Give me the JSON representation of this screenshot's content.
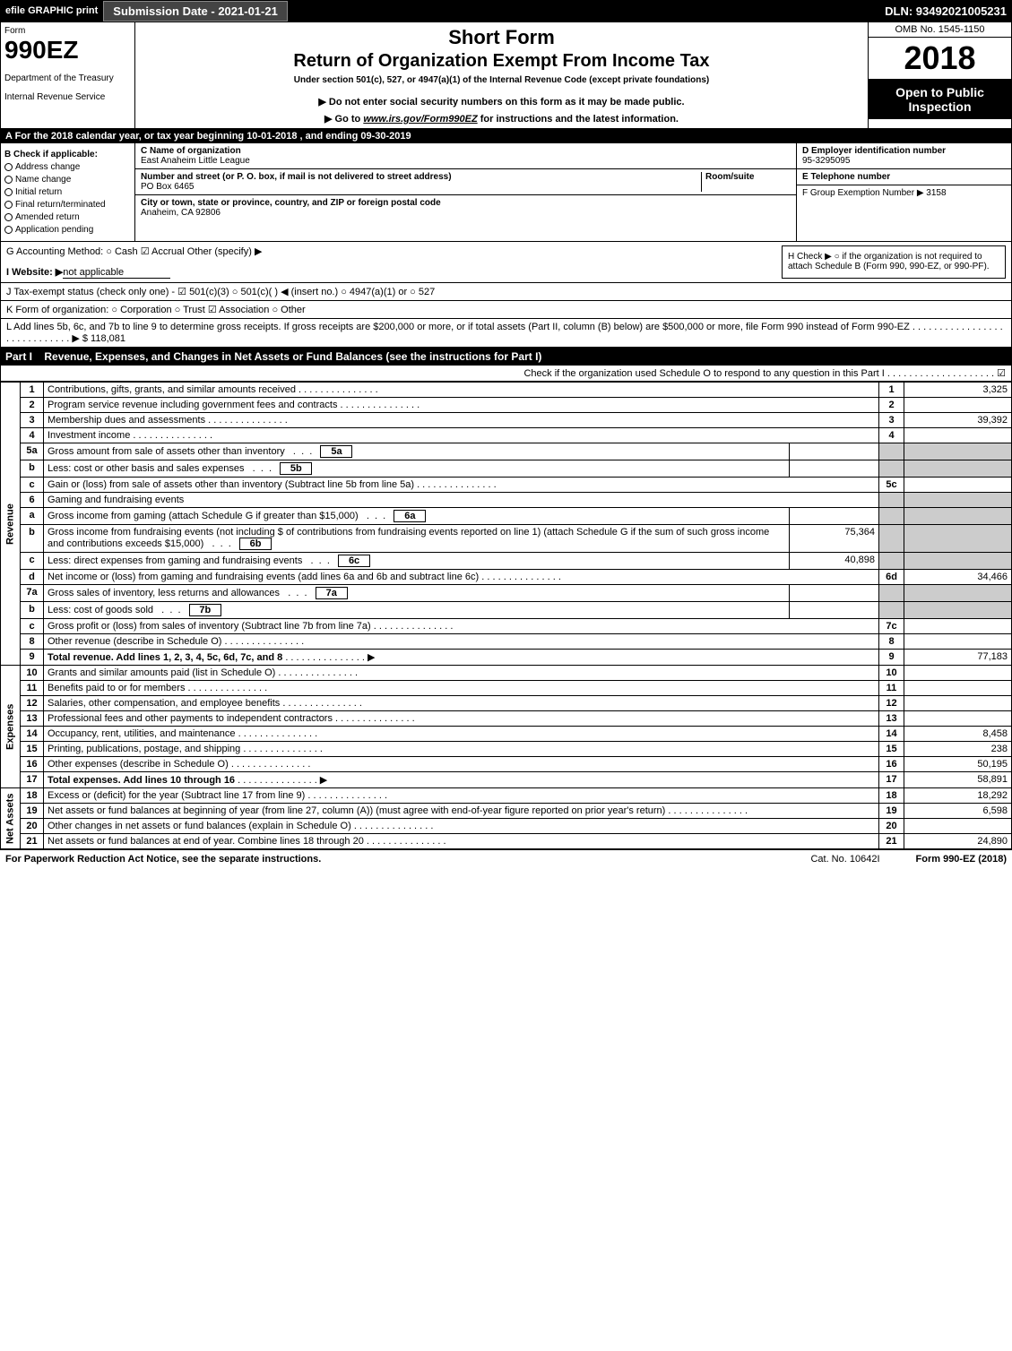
{
  "topbar": {
    "efile": "efile GRAPHIC print",
    "subdate": "Submission Date - 2021-01-21",
    "dln": "DLN: 93492021005231"
  },
  "header": {
    "form_lbl": "Form",
    "form_num": "990EZ",
    "dept1": "Department of the Treasury",
    "dept2": "Internal Revenue Service",
    "short": "Short Form",
    "ret": "Return of Organization Exempt From Income Tax",
    "under": "Under section 501(c), 527, or 4947(a)(1) of the Internal Revenue Code (except private foundations)",
    "note1": "▶ Do not enter social security numbers on this form as it may be made public.",
    "note2_pre": "▶ Go to ",
    "note2_link": "www.irs.gov/Form990EZ",
    "note2_post": " for instructions and the latest information.",
    "omb": "OMB No. 1545-1150",
    "year": "2018",
    "open": "Open to Public Inspection"
  },
  "period": "A  For the 2018 calendar year, or tax year beginning 10-01-2018            , and ending 09-30-2019",
  "B": {
    "hdr": "B  Check if applicable:",
    "items": [
      "Address change",
      "Name change",
      "Initial return",
      "Final return/terminated",
      "Amended return",
      "Application pending"
    ]
  },
  "C": {
    "name_lbl": "C Name of organization",
    "name": "East Anaheim Little League",
    "addr_lbl": "Number and street (or P. O. box, if mail is not delivered to street address)",
    "room_lbl": "Room/suite",
    "addr": "PO Box 6465",
    "city_lbl": "City or town, state or province, country, and ZIP or foreign postal code",
    "city": "Anaheim, CA  92806"
  },
  "D": {
    "lbl": "D Employer identification number",
    "val": "95-3295095"
  },
  "E": {
    "lbl": "E Telephone number"
  },
  "F": {
    "lbl": "F Group Exemption Number  ▶ 3158"
  },
  "G": "G Accounting Method:   ○ Cash   ☑ Accrual   Other (specify) ▶",
  "H": "H   Check ▶  ○  if the organization is not required to attach Schedule B (Form 990, 990-EZ, or 990-PF).",
  "I": {
    "pre": "I Website: ▶",
    "val": "not applicable"
  },
  "J": "J Tax-exempt status (check only one) -  ☑ 501(c)(3)  ○  501(c)(   ) ◀ (insert no.)  ○  4947(a)(1) or  ○  527",
  "K": "K Form of organization:   ○ Corporation   ○ Trust   ☑ Association   ○ Other",
  "L": {
    "text": "L Add lines 5b, 6c, and 7b to line 9 to determine gross receipts. If gross receipts are $200,000 or more, or if total assets (Part II, column (B) below) are $500,000 or more, file Form 990 instead of Form 990-EZ  .  .  .  .  .  .  .  .  .  .  .  .  .  .  .  .  .  .  .  .  .  .  .  .  .  .  .  .  .  ▶ $",
    "val": "118,081"
  },
  "part1": {
    "hdr": "Part I",
    "title": "Revenue, Expenses, and Changes in Net Assets or Fund Balances (see the instructions for Part I)",
    "sub": "Check if the organization used Schedule O to respond to any question in this Part I  .  .  .  .  .  .  .  .  .  .  .  .  .  .  .  .  .  .  .  .  ☑"
  },
  "sections": {
    "rev": "Revenue",
    "exp": "Expenses",
    "na": "Net Assets"
  },
  "lines": [
    {
      "n": "1",
      "t": "Contributions, gifts, grants, and similar amounts received",
      "r": "1",
      "a": "3,325"
    },
    {
      "n": "2",
      "t": "Program service revenue including government fees and contracts",
      "r": "2",
      "a": ""
    },
    {
      "n": "3",
      "t": "Membership dues and assessments",
      "r": "3",
      "a": "39,392"
    },
    {
      "n": "4",
      "t": "Investment income",
      "r": "4",
      "a": ""
    },
    {
      "n": "5a",
      "t": "Gross amount from sale of assets other than inventory",
      "box": "5a",
      "bv": ""
    },
    {
      "n": "b",
      "t": "Less: cost or other basis and sales expenses",
      "box": "5b",
      "bv": ""
    },
    {
      "n": "c",
      "t": "Gain or (loss) from sale of assets other than inventory (Subtract line 5b from line 5a)",
      "r": "5c",
      "a": ""
    },
    {
      "n": "6",
      "t": "Gaming and fundraising events"
    },
    {
      "n": "a",
      "t": "Gross income from gaming (attach Schedule G if greater than $15,000)",
      "box": "6a",
      "bv": ""
    },
    {
      "n": "b",
      "t": "Gross income from fundraising events (not including $                     of contributions from fundraising events reported on line 1) (attach Schedule G if the sum of such gross income and contributions exceeds $15,000)",
      "box": "6b",
      "bv": "75,364"
    },
    {
      "n": "c",
      "t": "Less: direct expenses from gaming and fundraising events",
      "box": "6c",
      "bv": "40,898"
    },
    {
      "n": "d",
      "t": "Net income or (loss) from gaming and fundraising events (add lines 6a and 6b and subtract line 6c)",
      "r": "6d",
      "a": "34,466"
    },
    {
      "n": "7a",
      "t": "Gross sales of inventory, less returns and allowances",
      "box": "7a",
      "bv": ""
    },
    {
      "n": "b",
      "t": "Less: cost of goods sold",
      "box": "7b",
      "bv": ""
    },
    {
      "n": "c",
      "t": "Gross profit or (loss) from sales of inventory (Subtract line 7b from line 7a)",
      "r": "7c",
      "a": ""
    },
    {
      "n": "8",
      "t": "Other revenue (describe in Schedule O)",
      "r": "8",
      "a": ""
    },
    {
      "n": "9",
      "t": "Total revenue. Add lines 1, 2, 3, 4, 5c, 6d, 7c, and 8",
      "r": "9",
      "a": "77,183",
      "bold": true,
      "arrow": true
    }
  ],
  "explines": [
    {
      "n": "10",
      "t": "Grants and similar amounts paid (list in Schedule O)",
      "r": "10",
      "a": ""
    },
    {
      "n": "11",
      "t": "Benefits paid to or for members",
      "r": "11",
      "a": ""
    },
    {
      "n": "12",
      "t": "Salaries, other compensation, and employee benefits",
      "r": "12",
      "a": ""
    },
    {
      "n": "13",
      "t": "Professional fees and other payments to independent contractors",
      "r": "13",
      "a": ""
    },
    {
      "n": "14",
      "t": "Occupancy, rent, utilities, and maintenance",
      "r": "14",
      "a": "8,458"
    },
    {
      "n": "15",
      "t": "Printing, publications, postage, and shipping",
      "r": "15",
      "a": "238"
    },
    {
      "n": "16",
      "t": "Other expenses (describe in Schedule O)",
      "r": "16",
      "a": "50,195"
    },
    {
      "n": "17",
      "t": "Total expenses. Add lines 10 through 16",
      "r": "17",
      "a": "58,891",
      "bold": true,
      "arrow": true
    }
  ],
  "nalines": [
    {
      "n": "18",
      "t": "Excess or (deficit) for the year (Subtract line 17 from line 9)",
      "r": "18",
      "a": "18,292"
    },
    {
      "n": "19",
      "t": "Net assets or fund balances at beginning of year (from line 27, column (A)) (must agree with end-of-year figure reported on prior year's return)",
      "r": "19",
      "a": "6,598"
    },
    {
      "n": "20",
      "t": "Other changes in net assets or fund balances (explain in Schedule O)",
      "r": "20",
      "a": ""
    },
    {
      "n": "21",
      "t": "Net assets or fund balances at end of year. Combine lines 18 through 20",
      "r": "21",
      "a": "24,890"
    }
  ],
  "footer": {
    "left": "For Paperwork Reduction Act Notice, see the separate instructions.",
    "mid": "Cat. No. 10642I",
    "right": "Form 990-EZ (2018)"
  }
}
